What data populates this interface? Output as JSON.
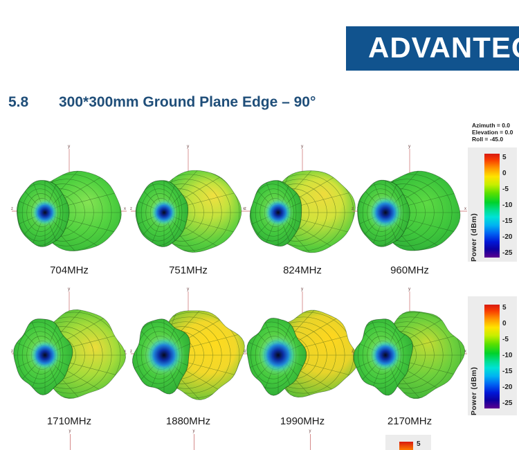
{
  "logo": {
    "text": "ADVANTECH",
    "color": "#11538e"
  },
  "heading": {
    "number": "5.8",
    "title": "300*300mm Ground Plane Edge – 90°",
    "color": "#1f4e79"
  },
  "orientation": {
    "azimuth": "Azimuth = 0.0",
    "elevation": "Elevation = 0.0",
    "roll": "Roll = -45.0"
  },
  "axes": {
    "x": "x",
    "y": "y",
    "z": "z"
  },
  "colorbar": {
    "title": "Power (dBm)",
    "ticks": [
      "5",
      "0",
      "-5",
      "-10",
      "-15",
      "-20",
      "-25"
    ]
  },
  "rows": [
    {
      "plots": [
        {
          "label": "704MHz"
        },
        {
          "label": "751MHz"
        },
        {
          "label": "824MHz"
        },
        {
          "label": "960MHz"
        }
      ]
    },
    {
      "plots": [
        {
          "label": "1710MHz"
        },
        {
          "label": "1880MHz"
        },
        {
          "label": "1990MHz"
        },
        {
          "label": "2170MHz"
        }
      ]
    }
  ]
}
